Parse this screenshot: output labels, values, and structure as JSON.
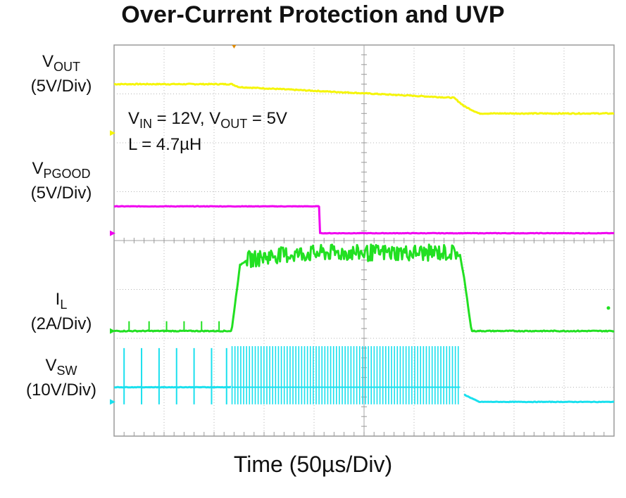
{
  "chart_data": {
    "type": "line",
    "title": "Over-Current Protection and UVP",
    "xlabel": "Time (50µs/Div)",
    "x_divisions": 10,
    "y_divisions": 8,
    "annotation": {
      "line1": {
        "vin_sym": "V",
        "vin_sub": "IN",
        "vin_val": " = 12V, ",
        "vout_sym": "V",
        "vout_sub": "OUT",
        "vout_val": " = 5V"
      },
      "line2": "L = 4.7µH"
    },
    "channels": [
      {
        "key": "vout",
        "symbol": "V",
        "subscript": "OUT",
        "scale": "(5V/Div)",
        "color": "#f5f50a",
        "marker_color": "#f5f50a",
        "ground_div": 6.2,
        "points": [
          [
            0,
            1.0
          ],
          [
            2.35,
            1.0
          ],
          [
            2.5,
            0.94
          ],
          [
            6.8,
            0.72
          ],
          [
            7.0,
            0.55
          ],
          [
            7.3,
            0.4
          ],
          [
            10,
            0.4
          ]
        ],
        "noise_div": 0.02
      },
      {
        "key": "vpgood",
        "symbol": "V",
        "subscript": "PGOOD",
        "scale": "(5V/Div)",
        "color": "#f000f0",
        "marker_color": "#f000f0",
        "ground_div": 4.15,
        "points": [
          [
            0,
            0.55
          ],
          [
            4.1,
            0.55
          ],
          [
            4.12,
            0.0
          ],
          [
            10,
            0.0
          ]
        ],
        "noise_div": 0.01
      },
      {
        "key": "il",
        "symbol": "I",
        "subscript": "L",
        "scale": "(2A/Div)",
        "color": "#22e022",
        "marker_color": "#22e022",
        "ground_div": 2.15,
        "points": [
          [
            0,
            0.0
          ],
          [
            2.35,
            0.0
          ],
          [
            2.52,
            1.35
          ],
          [
            2.65,
            1.45
          ],
          [
            3.2,
            1.55
          ],
          [
            4.2,
            1.6
          ],
          [
            6.9,
            1.6
          ],
          [
            7.0,
            1.1
          ],
          [
            7.15,
            0.0
          ],
          [
            10,
            0.0
          ]
        ],
        "spikes_low": [
          0.3,
          0.7,
          1.05,
          1.4,
          1.75,
          2.1
        ],
        "spike_low_height": 0.2,
        "ripple_start": 2.65,
        "ripple_end": 6.95,
        "ripple_amp": 0.17,
        "noise_div": 0.02
      },
      {
        "key": "vsw",
        "symbol": "V",
        "subscript": "SW",
        "scale": "(10V/Div)",
        "color": "#1ae0ee",
        "marker_color": "#1ae0ee",
        "ground_div": 0.7,
        "base_before": 0.3,
        "spikes": [
          0.2,
          0.55,
          0.9,
          1.25,
          1.6,
          1.95,
          2.25
        ],
        "spike_top": 1.1,
        "spike_bottom": -0.05,
        "burst_start": 2.36,
        "burst_end": 6.92,
        "burst_top": 1.14,
        "burst_bottom": -0.05,
        "points_after": [
          [
            7.0,
            0.15
          ],
          [
            7.3,
            0.0
          ],
          [
            10,
            0.0
          ]
        ],
        "noise_div": 0.01
      }
    ],
    "grid": true,
    "legend": "left"
  }
}
